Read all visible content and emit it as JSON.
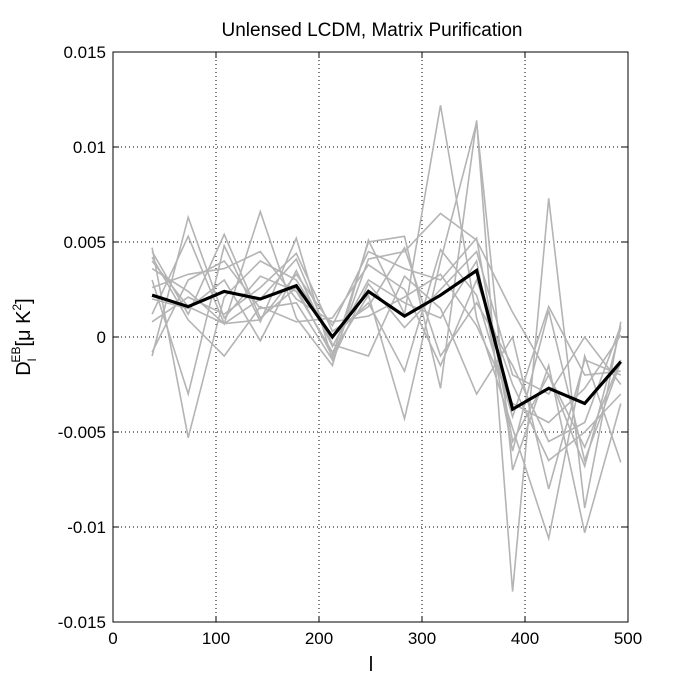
{
  "chart_data": {
    "type": "line",
    "title": "Unlensed LCDM, Matrix Purification",
    "xlabel": "l",
    "ylabel": {
      "base": "D",
      "sub": "l",
      "sup": "EB",
      "unit_open": "[μ K",
      "unit_sup": "2",
      "unit_close": "]"
    },
    "xlim": [
      0,
      500
    ],
    "ylim": [
      -0.015,
      0.015
    ],
    "xticks": [
      0,
      100,
      200,
      300,
      400,
      500
    ],
    "xtick_labels": [
      "0",
      "100",
      "200",
      "300",
      "400",
      "500"
    ],
    "yticks": [
      0.015,
      0.01,
      0.005,
      0,
      -0.005,
      -0.01,
      -0.015
    ],
    "ytick_labels": [
      "0.015",
      "0.01",
      "0.005",
      "0",
      "-0.005",
      "-0.01",
      "-0.015"
    ],
    "grid": true,
    "colors": {
      "realizations": "#b4b4b4",
      "mean": "#000000"
    },
    "x": [
      38,
      73,
      108,
      143,
      178,
      213,
      248,
      283,
      318,
      353,
      388,
      423,
      458,
      493
    ],
    "series": [
      {
        "values": [
          0.0045,
          0.0012,
          0.0054,
          0.001,
          0.0026,
          -0.001,
          0.005,
          0.0053,
          -0.0027,
          0.0114,
          -0.0134,
          0.0073,
          -0.009,
          0.0008
        ]
      },
      {
        "values": [
          0.0012,
          0.0053,
          0.0007,
          0.0066,
          0.001,
          -0.0015,
          0.0051,
          0.0012,
          0.0122,
          0.001,
          -0.0048,
          -0.0106,
          -0.001,
          -0.0066
        ]
      },
      {
        "values": [
          -0.001,
          0.0063,
          0.001,
          0.0032,
          0.0024,
          -0.0008,
          0.0022,
          -0.0043,
          0.004,
          0.0113,
          -0.007,
          -0.0015,
          -0.0103,
          -0.0035
        ]
      },
      {
        "values": [
          0.003,
          -0.003,
          0.0048,
          0.0008,
          0.0052,
          -0.0012,
          0.0041,
          0.0045,
          0.0065,
          0.0051,
          0.0013,
          -0.002,
          -0.0068,
          0.0005
        ]
      },
      {
        "values": [
          0.0042,
          0.0009,
          -0.001,
          0.0016,
          0.0008,
          0.001,
          0.0038,
          0.0025,
          -0.0015,
          0.003,
          -0.0025,
          -0.0065,
          -0.005,
          -0.003
        ]
      },
      {
        "values": [
          0.0047,
          -0.0053,
          0.0021,
          0.004,
          0.003,
          0.0,
          0.0018,
          -0.0018,
          0.0046,
          0.0022,
          -0.0042,
          0.0016,
          -0.002,
          -0.0018
        ]
      },
      {
        "values": [
          0.002,
          0.0015,
          0.003,
          -0.0002,
          0.0035,
          -0.0005,
          0.003,
          0.0018,
          0.001,
          0.004,
          -0.006,
          0.0014,
          -0.0065,
          -0.0013
        ]
      },
      {
        "values": [
          0.0036,
          0.0024,
          0.0007,
          0.002,
          0.0041,
          -0.0004,
          -0.001,
          0.0032,
          0.0015,
          -0.003,
          0.0,
          -0.008,
          -0.0012,
          -0.002
        ]
      },
      {
        "values": [
          0.0008,
          0.0021,
          0.0012,
          0.0026,
          0.0044,
          0.0003,
          0.0016,
          0.0047,
          -0.001,
          0.0018,
          -0.0015,
          -0.0055,
          -0.0045,
          0.0006
        ]
      },
      {
        "values": [
          -0.0008,
          0.003,
          0.004,
          0.0015,
          0.0018,
          -0.0012,
          0.0028,
          0.0005,
          0.0025,
          0.0045,
          -0.002,
          -0.003,
          0.0,
          -0.0025
        ]
      },
      {
        "values": [
          0.0026,
          0.0033,
          0.0036,
          0.0045,
          0.002,
          0.0008,
          0.0011,
          0.0021,
          0.0033,
          0.0006,
          -0.0035,
          -0.0045,
          -0.0027,
          0.0001
        ]
      },
      {
        "values": [
          0.004,
          0.0016,
          0.0007,
          0.0009,
          0.0033,
          0.0006,
          0.0045,
          0.0036,
          0.003,
          0.0052,
          -0.0055,
          -0.002,
          -0.0058,
          -0.0012
        ]
      }
    ],
    "mean": {
      "values": [
        0.0022,
        0.0016,
        0.0024,
        0.002,
        0.0027,
        0.0,
        0.0024,
        0.0011,
        0.0022,
        0.0035,
        -0.0038,
        -0.0027,
        -0.0035,
        -0.0013
      ]
    }
  }
}
